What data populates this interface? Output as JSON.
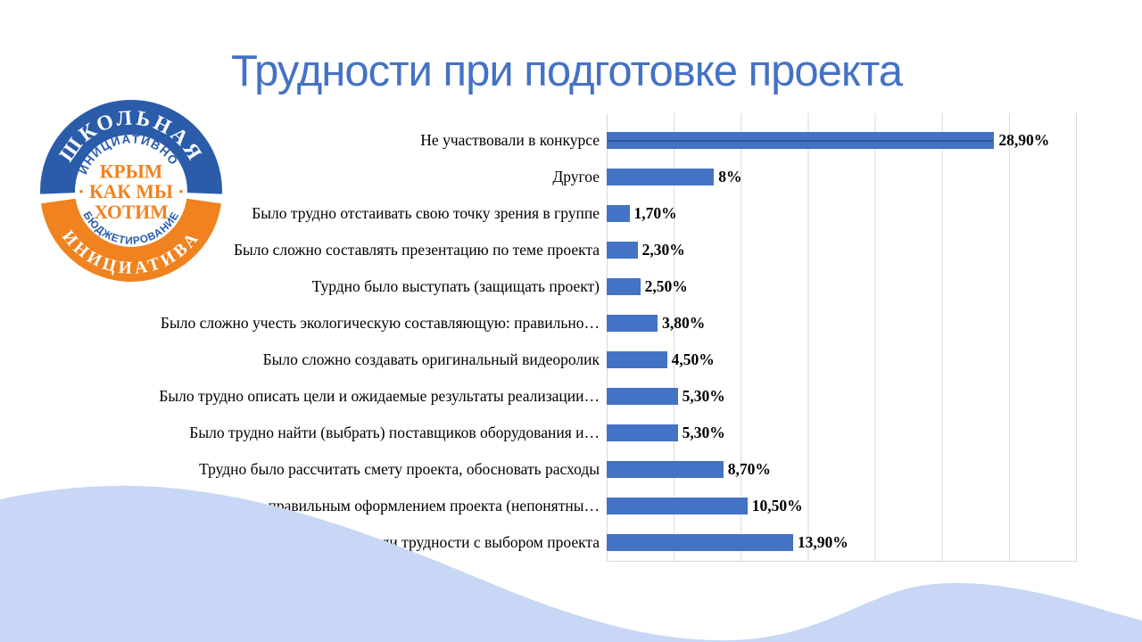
{
  "slide": {
    "title": "Трудности при подготовке проекта",
    "title_color": "#4472C4",
    "background_color": "#FFFFFF",
    "wave_color": "#C7D7F5"
  },
  "logo": {
    "outer_top_text": "ШКОЛЬНАЯ",
    "outer_bottom_text": "ИНИЦИАТИВА",
    "inner_top_text": "ИНИЦИАТИВНОЕ",
    "inner_bottom_text": "БЮДЖЕТИРОВАНИЕ",
    "center_line1": "КРЫМ",
    "center_line2": "· КАК МЫ ·",
    "center_line3": "ХОТИМ",
    "blue": "#2A5CAA",
    "orange": "#F0821F",
    "ring_text_color": "#FFFFFF"
  },
  "chart_data": {
    "type": "bar",
    "orientation": "horizontal",
    "title": "",
    "xlabel": "",
    "ylabel": "",
    "categories": [
      "Не участвовали в конкурсе",
      "Другое",
      "Было трудно отстаивать свою точку зрения в группе",
      "Было сложно составлять презентацию по теме проекта",
      "Турдно было выступать (защищать проект)",
      "Было сложно учесть экологическую составляющую: правильно…",
      "Было сложно создавать оригинальный видеоролик",
      "Было трудно описать цели и ожидаемые результаты реализации…",
      "Было трудно найти (выбрать) поставщиков оборудования и…",
      "Трудно было рассчитать смету проекта, обосновать расходы",
      "Затруднялись с правильным оформлением проекта (непонятны…",
      "Были ли трудности с выбором проекта"
    ],
    "values": [
      28.9,
      8,
      1.7,
      2.3,
      2.5,
      3.8,
      4.5,
      5.3,
      5.3,
      8.7,
      10.5,
      13.9
    ],
    "value_labels": [
      "28,90%",
      "8%",
      "1,70%",
      "2,30%",
      "2,50%",
      "3,80%",
      "4,50%",
      "5,30%",
      "5,30%",
      "8,70%",
      "10,50%",
      "13,90%"
    ],
    "xlim": [
      0,
      35
    ],
    "gridline_step": 5,
    "grid": true,
    "legend": "none",
    "bar_color": "#4472C4",
    "gridline_color": "#D9D9D9",
    "first_bar_center_line": true
  }
}
